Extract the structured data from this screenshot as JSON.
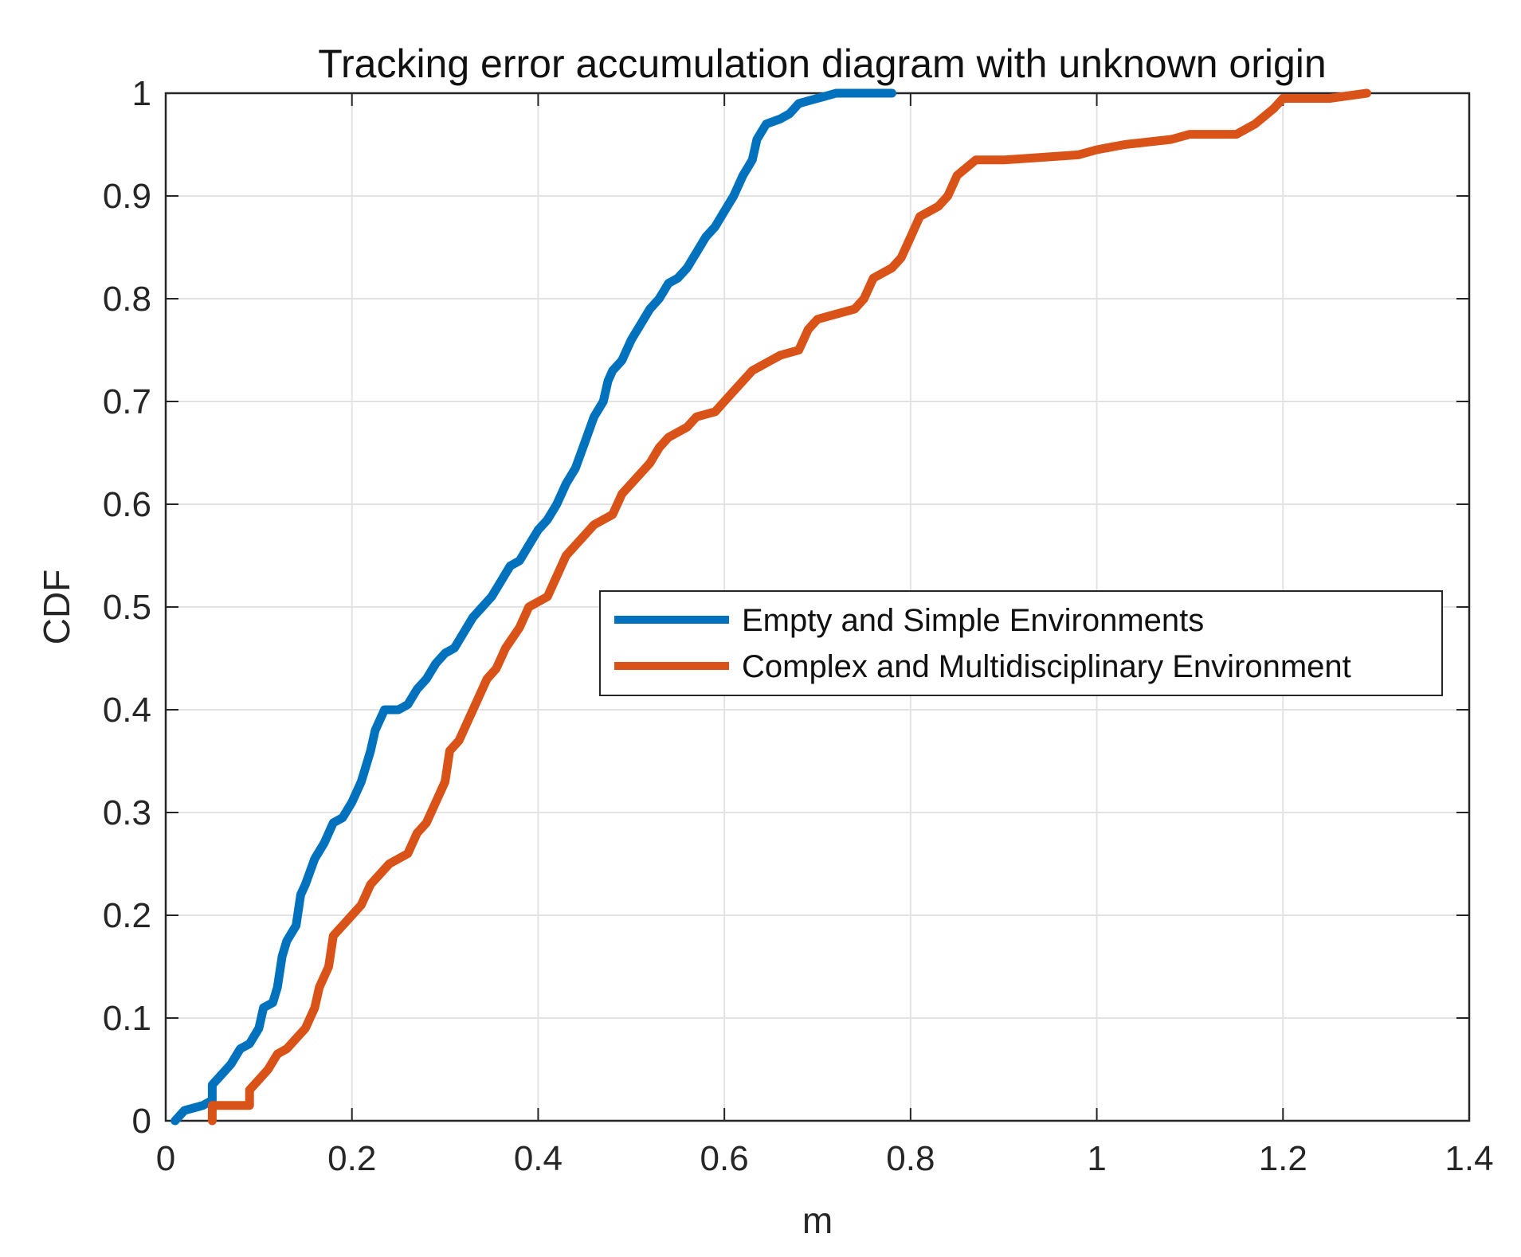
{
  "chart_data": {
    "type": "line",
    "title": "Tracking  error accumulation diagram with unknown origin",
    "xlabel": "m",
    "ylabel": "CDF",
    "xlim": [
      0,
      1.4
    ],
    "ylim": [
      0,
      1
    ],
    "xticks": [
      "0",
      "0.2",
      "0.4",
      "0.6",
      "0.8",
      "1",
      "1.2",
      "1.4"
    ],
    "yticks": [
      "0",
      "0.1",
      "0.2",
      "0.3",
      "0.4",
      "0.5",
      "0.6",
      "0.7",
      "0.8",
      "0.9",
      "1"
    ],
    "grid": true,
    "legend_position": "center-right",
    "series": [
      {
        "name": "Empty and Simple Environments",
        "color": "#0072BD",
        "points": [
          [
            0.01,
            0.0
          ],
          [
            0.02,
            0.01
          ],
          [
            0.04,
            0.015
          ],
          [
            0.05,
            0.02
          ],
          [
            0.05,
            0.035
          ],
          [
            0.06,
            0.045
          ],
          [
            0.07,
            0.055
          ],
          [
            0.08,
            0.07
          ],
          [
            0.09,
            0.075
          ],
          [
            0.1,
            0.09
          ],
          [
            0.105,
            0.11
          ],
          [
            0.115,
            0.115
          ],
          [
            0.12,
            0.13
          ],
          [
            0.125,
            0.16
          ],
          [
            0.13,
            0.175
          ],
          [
            0.14,
            0.19
          ],
          [
            0.145,
            0.22
          ],
          [
            0.15,
            0.23
          ],
          [
            0.16,
            0.255
          ],
          [
            0.17,
            0.27
          ],
          [
            0.18,
            0.29
          ],
          [
            0.19,
            0.295
          ],
          [
            0.2,
            0.31
          ],
          [
            0.21,
            0.33
          ],
          [
            0.22,
            0.36
          ],
          [
            0.225,
            0.38
          ],
          [
            0.235,
            0.4
          ],
          [
            0.25,
            0.4
          ],
          [
            0.26,
            0.405
          ],
          [
            0.27,
            0.42
          ],
          [
            0.28,
            0.43
          ],
          [
            0.29,
            0.445
          ],
          [
            0.3,
            0.455
          ],
          [
            0.31,
            0.46
          ],
          [
            0.32,
            0.475
          ],
          [
            0.33,
            0.49
          ],
          [
            0.34,
            0.5
          ],
          [
            0.35,
            0.51
          ],
          [
            0.36,
            0.525
          ],
          [
            0.37,
            0.54
          ],
          [
            0.38,
            0.545
          ],
          [
            0.39,
            0.56
          ],
          [
            0.4,
            0.575
          ],
          [
            0.41,
            0.585
          ],
          [
            0.42,
            0.6
          ],
          [
            0.43,
            0.62
          ],
          [
            0.44,
            0.635
          ],
          [
            0.45,
            0.66
          ],
          [
            0.46,
            0.685
          ],
          [
            0.47,
            0.7
          ],
          [
            0.475,
            0.72
          ],
          [
            0.48,
            0.73
          ],
          [
            0.49,
            0.74
          ],
          [
            0.5,
            0.76
          ],
          [
            0.51,
            0.775
          ],
          [
            0.52,
            0.79
          ],
          [
            0.53,
            0.8
          ],
          [
            0.54,
            0.815
          ],
          [
            0.55,
            0.82
          ],
          [
            0.56,
            0.83
          ],
          [
            0.57,
            0.845
          ],
          [
            0.58,
            0.86
          ],
          [
            0.59,
            0.87
          ],
          [
            0.6,
            0.885
          ],
          [
            0.61,
            0.9
          ],
          [
            0.62,
            0.92
          ],
          [
            0.63,
            0.935
          ],
          [
            0.635,
            0.955
          ],
          [
            0.645,
            0.97
          ],
          [
            0.66,
            0.975
          ],
          [
            0.67,
            0.98
          ],
          [
            0.68,
            0.99
          ],
          [
            0.7,
            0.995
          ],
          [
            0.72,
            1.0
          ],
          [
            0.78,
            1.0
          ]
        ]
      },
      {
        "name": "Complex and Multidisciplinary Environment",
        "color": "#D95319",
        "points": [
          [
            0.05,
            0.0
          ],
          [
            0.05,
            0.015
          ],
          [
            0.09,
            0.015
          ],
          [
            0.09,
            0.03
          ],
          [
            0.1,
            0.04
          ],
          [
            0.11,
            0.05
          ],
          [
            0.12,
            0.065
          ],
          [
            0.13,
            0.07
          ],
          [
            0.14,
            0.08
          ],
          [
            0.15,
            0.09
          ],
          [
            0.16,
            0.11
          ],
          [
            0.165,
            0.13
          ],
          [
            0.175,
            0.15
          ],
          [
            0.18,
            0.18
          ],
          [
            0.19,
            0.19
          ],
          [
            0.2,
            0.2
          ],
          [
            0.21,
            0.21
          ],
          [
            0.22,
            0.23
          ],
          [
            0.23,
            0.24
          ],
          [
            0.24,
            0.25
          ],
          [
            0.26,
            0.26
          ],
          [
            0.27,
            0.28
          ],
          [
            0.28,
            0.29
          ],
          [
            0.29,
            0.31
          ],
          [
            0.3,
            0.33
          ],
          [
            0.305,
            0.36
          ],
          [
            0.315,
            0.37
          ],
          [
            0.325,
            0.39
          ],
          [
            0.335,
            0.41
          ],
          [
            0.345,
            0.43
          ],
          [
            0.355,
            0.44
          ],
          [
            0.365,
            0.46
          ],
          [
            0.38,
            0.48
          ],
          [
            0.39,
            0.5
          ],
          [
            0.41,
            0.51
          ],
          [
            0.42,
            0.53
          ],
          [
            0.43,
            0.55
          ],
          [
            0.44,
            0.56
          ],
          [
            0.45,
            0.57
          ],
          [
            0.46,
            0.58
          ],
          [
            0.48,
            0.59
          ],
          [
            0.49,
            0.61
          ],
          [
            0.5,
            0.62
          ],
          [
            0.51,
            0.63
          ],
          [
            0.52,
            0.64
          ],
          [
            0.53,
            0.655
          ],
          [
            0.54,
            0.665
          ],
          [
            0.56,
            0.675
          ],
          [
            0.57,
            0.685
          ],
          [
            0.59,
            0.69
          ],
          [
            0.6,
            0.7
          ],
          [
            0.61,
            0.71
          ],
          [
            0.62,
            0.72
          ],
          [
            0.63,
            0.73
          ],
          [
            0.65,
            0.74
          ],
          [
            0.66,
            0.745
          ],
          [
            0.68,
            0.75
          ],
          [
            0.69,
            0.77
          ],
          [
            0.7,
            0.78
          ],
          [
            0.72,
            0.785
          ],
          [
            0.74,
            0.79
          ],
          [
            0.75,
            0.8
          ],
          [
            0.76,
            0.82
          ],
          [
            0.78,
            0.83
          ],
          [
            0.79,
            0.84
          ],
          [
            0.8,
            0.86
          ],
          [
            0.81,
            0.88
          ],
          [
            0.83,
            0.89
          ],
          [
            0.84,
            0.9
          ],
          [
            0.85,
            0.92
          ],
          [
            0.87,
            0.935
          ],
          [
            0.9,
            0.935
          ],
          [
            0.98,
            0.94
          ],
          [
            1.0,
            0.945
          ],
          [
            1.03,
            0.95
          ],
          [
            1.08,
            0.955
          ],
          [
            1.1,
            0.96
          ],
          [
            1.15,
            0.96
          ],
          [
            1.17,
            0.97
          ],
          [
            1.19,
            0.985
          ],
          [
            1.2,
            0.995
          ],
          [
            1.25,
            0.995
          ],
          [
            1.29,
            1.0
          ]
        ]
      }
    ]
  }
}
